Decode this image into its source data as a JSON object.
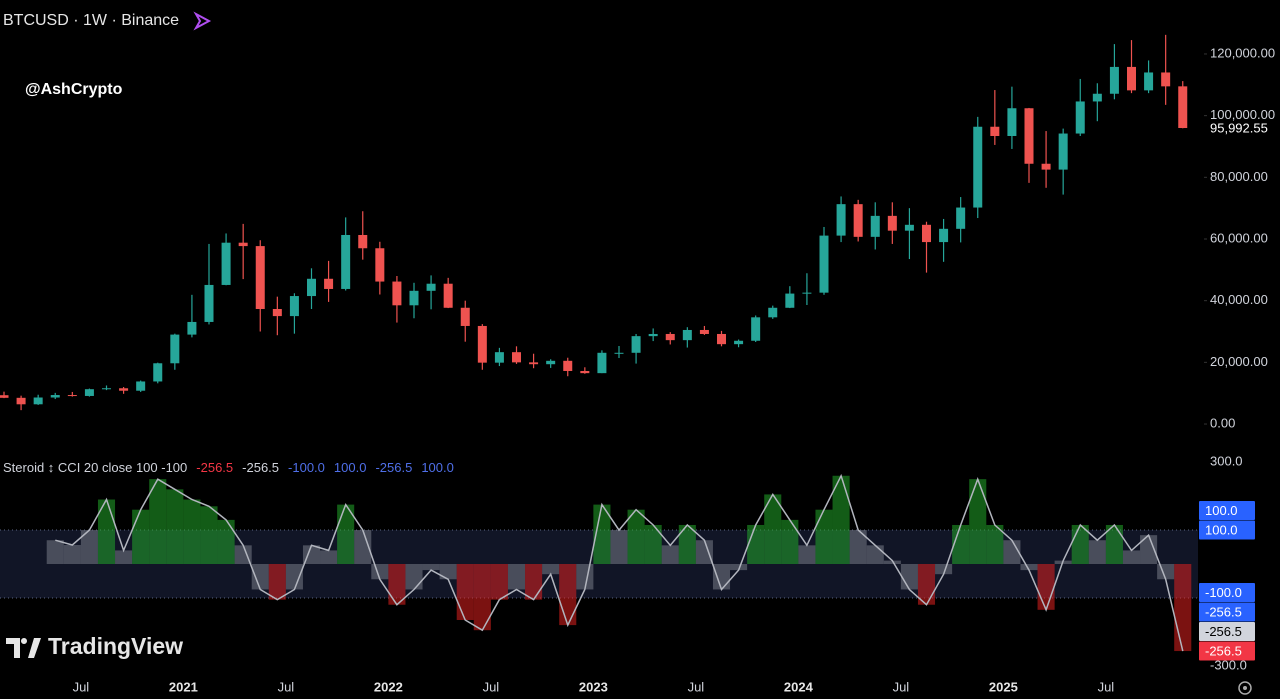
{
  "header": {
    "symbol": "BTCUSD · 1W · Binance"
  },
  "watermark": "@AshCrypto",
  "brand": "TradingView",
  "chart_data": [
    {
      "type": "candlestick",
      "x": [
        "2020-02",
        "2020-03",
        "2020-04",
        "2020-05",
        "2020-06",
        "2020-07",
        "2020-08",
        "2020-09",
        "2020-10",
        "2020-11",
        "2020-12",
        "2021-01",
        "2021-02",
        "2021-03",
        "2021-04",
        "2021-05",
        "2021-06",
        "2021-07",
        "2021-08",
        "2021-09",
        "2021-10",
        "2021-11",
        "2021-12",
        "2022-01",
        "2022-02",
        "2022-03",
        "2022-04",
        "2022-05",
        "2022-06",
        "2022-07",
        "2022-08",
        "2022-09",
        "2022-10",
        "2022-11",
        "2022-12",
        "2023-01",
        "2023-02",
        "2023-03",
        "2023-04",
        "2023-05",
        "2023-06",
        "2023-07",
        "2023-08",
        "2023-09",
        "2023-10",
        "2023-11",
        "2023-12",
        "2024-01",
        "2024-02",
        "2024-03",
        "2024-04",
        "2024-05",
        "2024-06",
        "2024-07",
        "2024-08",
        "2024-09",
        "2024-10",
        "2024-11",
        "2024-12",
        "2025-01",
        "2025-02",
        "2025-03",
        "2025-04",
        "2025-05",
        "2025-06",
        "2025-07",
        "2025-08",
        "2025-09",
        "2025-10",
        "2025-11"
      ],
      "open": [
        9350,
        8500,
        6400,
        8600,
        9400,
        9100,
        11300,
        11600,
        10800,
        13800,
        19700,
        29000,
        33100,
        45100,
        58800,
        57700,
        37300,
        35000,
        41500,
        47100,
        43800,
        61300,
        57000,
        46200,
        38500,
        43200,
        45500,
        37700,
        31800,
        19900,
        23300,
        20000,
        19400,
        20500,
        17200,
        16500,
        23100,
        23100,
        28500,
        29200,
        27200,
        30500,
        29200,
        25900,
        27000,
        34600,
        37700,
        42300,
        42600,
        61100,
        71300,
        60700,
        67500,
        62700,
        64600,
        59000,
        63300,
        70200,
        96400,
        93400,
        102400,
        84400,
        82500,
        94200,
        104600,
        107100,
        115800,
        108200,
        114000,
        109500
      ],
      "high": [
        10500,
        9200,
        9500,
        10100,
        10400,
        11500,
        12500,
        12000,
        14100,
        19900,
        29300,
        41900,
        58400,
        61800,
        64900,
        59600,
        41300,
        42400,
        50500,
        52900,
        67000,
        69000,
        59100,
        48000,
        45800,
        48200,
        47400,
        40000,
        32400,
        24700,
        25200,
        22800,
        21000,
        21500,
        18400,
        23900,
        25300,
        29200,
        31000,
        29800,
        31400,
        31800,
        30200,
        27400,
        35200,
        38400,
        44700,
        48900,
        63900,
        73800,
        72700,
        71900,
        71900,
        70000,
        65600,
        66500,
        73600,
        99600,
        108300,
        109400,
        102500,
        95000,
        95800,
        111900,
        110500,
        123200,
        124500,
        117900,
        126200,
        111200
      ],
      "low": [
        8400,
        4500,
        6200,
        8100,
        8900,
        8900,
        11000,
        9800,
        10400,
        13200,
        17600,
        28100,
        32300,
        45000,
        47000,
        30000,
        28800,
        29300,
        37300,
        39600,
        43300,
        53300,
        42000,
        32900,
        34300,
        37200,
        37600,
        26700,
        17600,
        18800,
        19500,
        18100,
        18200,
        15500,
        16300,
        16500,
        21400,
        19600,
        26900,
        25800,
        24800,
        28900,
        25200,
        24900,
        26600,
        34100,
        37600,
        38600,
        41900,
        59000,
        59200,
        56600,
        58400,
        53500,
        49100,
        52600,
        58900,
        66800,
        90500,
        89200,
        78200,
        76600,
        74400,
        93400,
        98200,
        105300,
        107300,
        107300,
        103500,
        95900
      ],
      "close": [
        8500,
        6400,
        8600,
        9400,
        9100,
        11300,
        11600,
        10800,
        13800,
        19700,
        29000,
        33100,
        45100,
        58800,
        57700,
        37300,
        35000,
        41500,
        47100,
        43800,
        61300,
        57000,
        46200,
        38500,
        43200,
        45500,
        37700,
        31800,
        19900,
        23300,
        20000,
        19400,
        20500,
        17200,
        16500,
        23100,
        23100,
        28500,
        29200,
        27200,
        30500,
        29200,
        25900,
        27000,
        34600,
        37700,
        42300,
        42600,
        61100,
        71300,
        60700,
        67500,
        62700,
        64600,
        59000,
        63300,
        70200,
        96400,
        93400,
        102400,
        84400,
        82500,
        94200,
        104600,
        107100,
        115800,
        108200,
        114000,
        109500,
        95992.55
      ],
      "up_color": "#26a69a",
      "down_color": "#ef5350",
      "ylim": [
        -6800,
        137500
      ],
      "yticks": [
        {
          "value": 0,
          "label": "0.00"
        },
        {
          "value": 20000,
          "label": "20,000.00"
        },
        {
          "value": 40000,
          "label": "40,000.00"
        },
        {
          "value": 60000,
          "label": "60,000.00"
        },
        {
          "value": 80000,
          "label": "80,000.00"
        },
        {
          "value": 100000,
          "label": "100,000.00"
        },
        {
          "value": 120000,
          "label": "120,000.00"
        }
      ],
      "last_price": {
        "value": 95992.55,
        "label": "95,992.55"
      },
      "xticks": [
        {
          "value": "2020-07",
          "label": "Jul"
        },
        {
          "value": "2021-01",
          "label": "2021"
        },
        {
          "value": "2021-07",
          "label": "Jul"
        },
        {
          "value": "2022-01",
          "label": "2022"
        },
        {
          "value": "2022-07",
          "label": "Jul"
        },
        {
          "value": "2023-01",
          "label": "2023"
        },
        {
          "value": "2023-07",
          "label": "Jul"
        },
        {
          "value": "2024-01",
          "label": "2024"
        },
        {
          "value": "2024-07",
          "label": "Jul"
        },
        {
          "value": "2025-01",
          "label": "2025"
        },
        {
          "value": "2025-07",
          "label": "Jul"
        }
      ]
    },
    {
      "type": "line",
      "title": "Steroid ↕ CCI 20 close 100 -100",
      "x": [
        "2020-02",
        "2020-03",
        "2020-04",
        "2020-05",
        "2020-06",
        "2020-07",
        "2020-08",
        "2020-09",
        "2020-10",
        "2020-11",
        "2020-12",
        "2021-01",
        "2021-02",
        "2021-03",
        "2021-04",
        "2021-05",
        "2021-06",
        "2021-07",
        "2021-08",
        "2021-09",
        "2021-10",
        "2021-11",
        "2021-12",
        "2022-01",
        "2022-02",
        "2022-03",
        "2022-04",
        "2022-05",
        "2022-06",
        "2022-07",
        "2022-08",
        "2022-09",
        "2022-10",
        "2022-11",
        "2022-12",
        "2023-01",
        "2023-02",
        "2023-03",
        "2023-04",
        "2023-05",
        "2023-06",
        "2023-07",
        "2023-08",
        "2023-09",
        "2023-10",
        "2023-11",
        "2023-12",
        "2024-01",
        "2024-02",
        "2024-03",
        "2024-04",
        "2024-05",
        "2024-06",
        "2024-07",
        "2024-08",
        "2024-09",
        "2024-10",
        "2024-11",
        "2024-12",
        "2025-01",
        "2025-02",
        "2025-03",
        "2025-04",
        "2025-05",
        "2025-06",
        "2025-07",
        "2025-08",
        "2025-09",
        "2025-10",
        "2025-11"
      ],
      "values": [
        null,
        null,
        null,
        70,
        56,
        100,
        190,
        40,
        160,
        250,
        220,
        190,
        170,
        130,
        55,
        -75,
        -105,
        -75,
        55,
        40,
        175,
        100,
        -45,
        -120,
        -75,
        -18,
        -45,
        -165,
        -195,
        -105,
        -75,
        -105,
        -30,
        -180,
        -75,
        175,
        100,
        160,
        115,
        55,
        115,
        70,
        -75,
        -18,
        115,
        205,
        130,
        55,
        160,
        260,
        100,
        55,
        10,
        -75,
        -120,
        -30,
        115,
        250,
        115,
        70,
        -18,
        -135,
        10,
        115,
        70,
        115,
        40,
        85,
        -45,
        -256.5
      ],
      "color": "#b2b5be",
      "up_color": "#22a82a",
      "down_color": "#e0201f",
      "mid_color": "#787b86",
      "upper": 100,
      "lower": -100,
      "ylim": [
        -330,
        330
      ],
      "yticks": [
        {
          "value": 300,
          "label": "300.0"
        },
        {
          "value": -300,
          "label": "-300.0"
        }
      ],
      "legend_values": [
        {
          "value": -256.5,
          "label": "-256.5",
          "color": "#f23645"
        },
        {
          "value": -256.5,
          "label": "-256.5",
          "color": "#d1d4dc"
        },
        {
          "value": -100,
          "label": "-100.0",
          "color": "#4f6fe8"
        },
        {
          "value": 100,
          "label": "100.0",
          "color": "#4f6fe8"
        },
        {
          "value": -256.5,
          "label": "-256.5",
          "color": "#4f6fe8"
        },
        {
          "value": 100,
          "label": "100.0",
          "color": "#4f6fe8"
        }
      ],
      "axis_markers": [
        {
          "value": 100,
          "label": "100.0",
          "color": "#2962ff"
        },
        {
          "value": 100,
          "label": "100.0",
          "color": "#2962ff"
        },
        {
          "value": -100,
          "label": "-100.0",
          "color": "#2962ff"
        },
        {
          "value": -256.5,
          "label": "-256.5",
          "color": "#2962ff"
        },
        {
          "value": -256.5,
          "label": "-256.5",
          "color": "#d1d4dc"
        },
        {
          "value": -256.5,
          "label": "-256.5",
          "color": "#f23645"
        }
      ]
    }
  ]
}
